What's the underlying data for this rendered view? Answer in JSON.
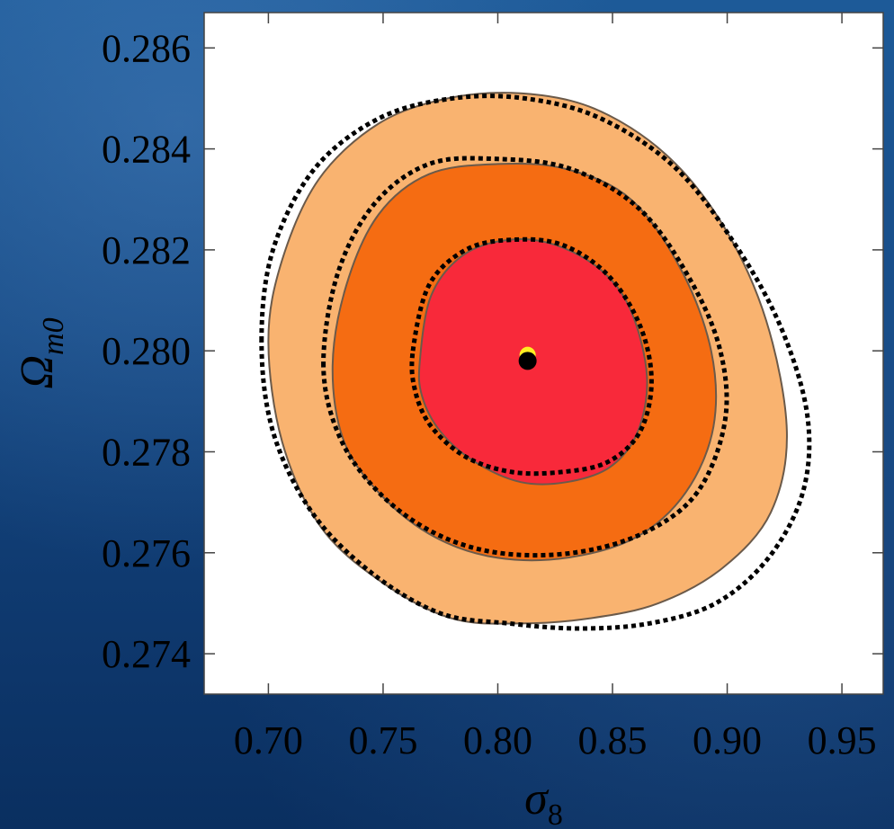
{
  "chart_data": {
    "type": "contour",
    "title": "",
    "xlabel": "σ",
    "xlabel_sub": "8",
    "ylabel": "Ω",
    "ylabel_sub": "m0",
    "xlim": [
      0.672,
      0.968
    ],
    "ylim": [
      0.2732,
      0.2867
    ],
    "xticks": [
      0.7,
      0.75,
      0.8,
      0.85,
      0.9,
      0.95
    ],
    "xtick_labels": [
      "0.70",
      "0.75",
      "0.80",
      "0.85",
      "0.90",
      "0.95"
    ],
    "yticks": [
      0.274,
      0.276,
      0.278,
      0.28,
      0.282,
      0.284,
      0.286
    ],
    "ytick_labels": [
      "0.274",
      "0.276",
      "0.278",
      "0.280",
      "0.282",
      "0.284",
      "0.286"
    ],
    "grid": false,
    "best_fit": {
      "x": 0.813,
      "y": 0.2798
    },
    "reference_point": {
      "x": 0.813,
      "y": 0.27992
    },
    "filled_contours": [
      {
        "level": "3-sigma",
        "color": "#f9b370",
        "points": [
          [
            0.7,
            0.2802
          ],
          [
            0.706,
            0.2818
          ],
          [
            0.722,
            0.2834
          ],
          [
            0.748,
            0.2845
          ],
          [
            0.778,
            0.285
          ],
          [
            0.81,
            0.2851
          ],
          [
            0.842,
            0.2848
          ],
          [
            0.873,
            0.2839
          ],
          [
            0.898,
            0.2825
          ],
          [
            0.917,
            0.2806
          ],
          [
            0.926,
            0.2784
          ],
          [
            0.919,
            0.2768
          ],
          [
            0.898,
            0.2757
          ],
          [
            0.87,
            0.275
          ],
          [
            0.84,
            0.2747
          ],
          [
            0.81,
            0.2746
          ],
          [
            0.78,
            0.2747
          ],
          [
            0.75,
            0.2754
          ],
          [
            0.723,
            0.2765
          ],
          [
            0.706,
            0.2782
          ]
        ]
      },
      {
        "level": "2-sigma",
        "color": "#f56c12",
        "points": [
          [
            0.728,
            0.2797
          ],
          [
            0.734,
            0.2813
          ],
          [
            0.748,
            0.2827
          ],
          [
            0.77,
            0.2835
          ],
          [
            0.8,
            0.2837
          ],
          [
            0.83,
            0.2836
          ],
          [
            0.858,
            0.283
          ],
          [
            0.88,
            0.2816
          ],
          [
            0.893,
            0.28
          ],
          [
            0.894,
            0.2785
          ],
          [
            0.882,
            0.2772
          ],
          [
            0.86,
            0.2763
          ],
          [
            0.83,
            0.2759
          ],
          [
            0.8,
            0.2759
          ],
          [
            0.773,
            0.2763
          ],
          [
            0.75,
            0.2771
          ],
          [
            0.733,
            0.2782
          ]
        ]
      },
      {
        "level": "1-sigma",
        "color": "#f8293a",
        "points": [
          [
            0.766,
            0.2798
          ],
          [
            0.771,
            0.2811
          ],
          [
            0.785,
            0.2819
          ],
          [
            0.805,
            0.2822
          ],
          [
            0.825,
            0.2821
          ],
          [
            0.845,
            0.2816
          ],
          [
            0.858,
            0.2808
          ],
          [
            0.865,
            0.2795
          ],
          [
            0.861,
            0.2784
          ],
          [
            0.849,
            0.2777
          ],
          [
            0.83,
            0.2774
          ],
          [
            0.81,
            0.2774
          ],
          [
            0.79,
            0.2778
          ],
          [
            0.775,
            0.2784
          ],
          [
            0.767,
            0.2791
          ]
        ]
      }
    ],
    "dotted_contours": [
      {
        "level": "3-sigma",
        "points": [
          [
            0.697,
            0.2802
          ],
          [
            0.702,
            0.282
          ],
          [
            0.72,
            0.2836
          ],
          [
            0.748,
            0.2846
          ],
          [
            0.78,
            0.285
          ],
          [
            0.812,
            0.285
          ],
          [
            0.845,
            0.2846
          ],
          [
            0.878,
            0.2836
          ],
          [
            0.905,
            0.282
          ],
          [
            0.924,
            0.2804
          ],
          [
            0.935,
            0.2787
          ],
          [
            0.933,
            0.2772
          ],
          [
            0.918,
            0.2759
          ],
          [
            0.895,
            0.275
          ],
          [
            0.866,
            0.2746
          ],
          [
            0.835,
            0.2745
          ],
          [
            0.805,
            0.2746
          ],
          [
            0.775,
            0.2748
          ],
          [
            0.745,
            0.2756
          ],
          [
            0.719,
            0.2768
          ],
          [
            0.702,
            0.2784
          ]
        ]
      },
      {
        "level": "2-sigma",
        "points": [
          [
            0.724,
            0.2797
          ],
          [
            0.73,
            0.2815
          ],
          [
            0.746,
            0.2829
          ],
          [
            0.77,
            0.2837
          ],
          [
            0.8,
            0.2838
          ],
          [
            0.832,
            0.2836
          ],
          [
            0.862,
            0.2828
          ],
          [
            0.884,
            0.2814
          ],
          [
            0.897,
            0.28
          ],
          [
            0.899,
            0.2786
          ],
          [
            0.887,
            0.2772
          ],
          [
            0.864,
            0.2764
          ],
          [
            0.833,
            0.276
          ],
          [
            0.8,
            0.276
          ],
          [
            0.772,
            0.2764
          ],
          [
            0.748,
            0.2772
          ],
          [
            0.731,
            0.2783
          ]
        ]
      },
      {
        "level": "1-sigma",
        "points": [
          [
            0.763,
            0.28
          ],
          [
            0.77,
            0.2813
          ],
          [
            0.786,
            0.282
          ],
          [
            0.806,
            0.2822
          ],
          [
            0.828,
            0.2821
          ],
          [
            0.848,
            0.2815
          ],
          [
            0.862,
            0.2805
          ],
          [
            0.867,
            0.2794
          ],
          [
            0.862,
            0.2784
          ],
          [
            0.848,
            0.2778
          ],
          [
            0.828,
            0.2776
          ],
          [
            0.806,
            0.2776
          ],
          [
            0.786,
            0.2779
          ],
          [
            0.771,
            0.2785
          ],
          [
            0.764,
            0.2792
          ]
        ]
      }
    ]
  }
}
